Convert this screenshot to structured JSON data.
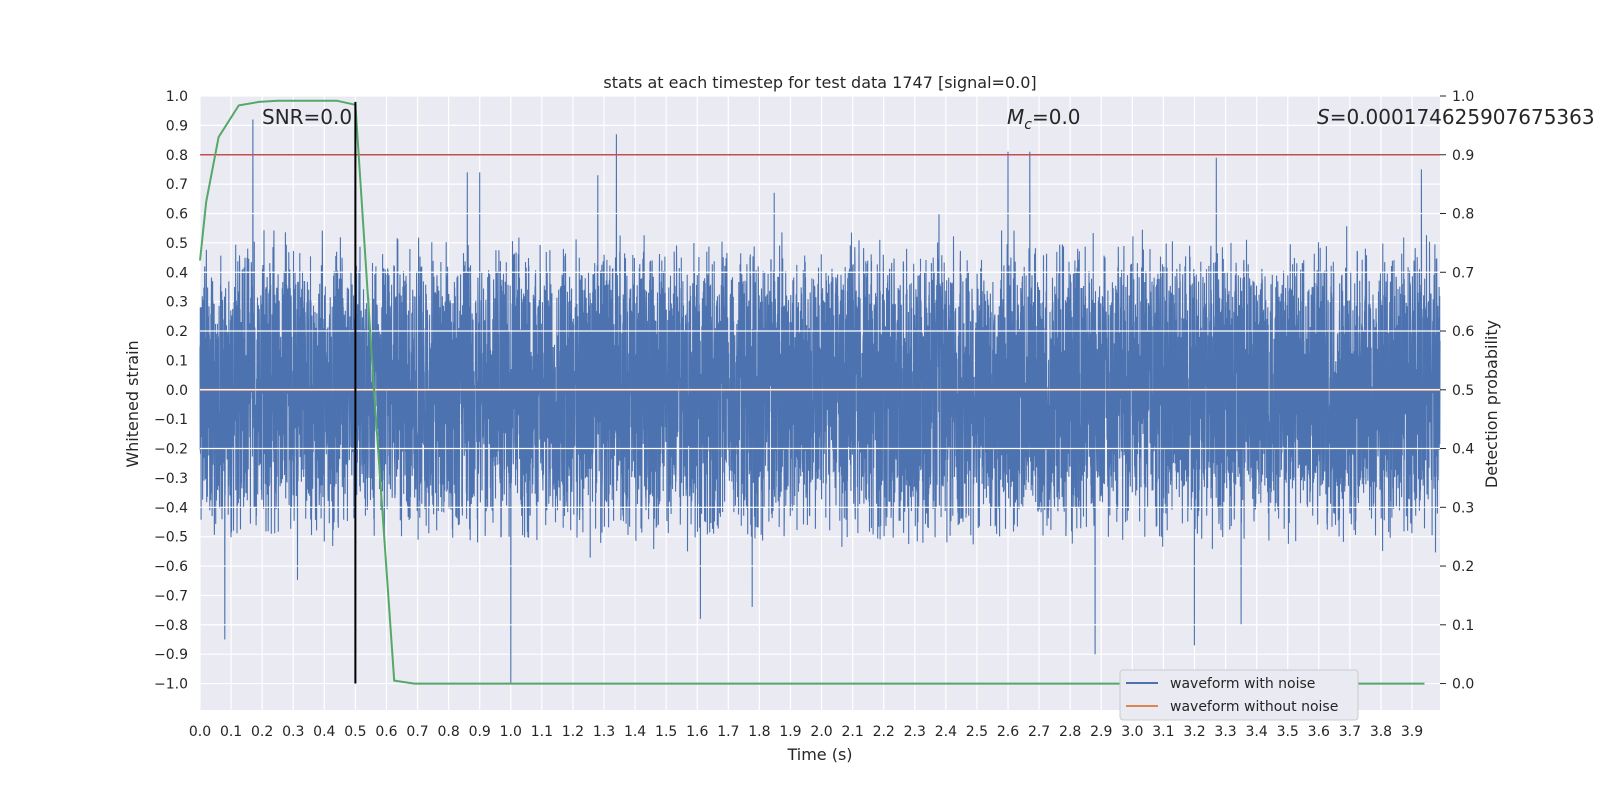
{
  "chart_data": {
    "type": "line",
    "title": "stats at each timestep for test data 1747 [signal=0.0]",
    "xlabel": "Time (s)",
    "ylabel": "Whitened strain",
    "y2label": "Detection probability",
    "xlim": [
      0.0,
      3.99
    ],
    "ylim": [
      -1.09,
      1.0
    ],
    "y2lim": [
      -0.045,
      1.0
    ],
    "xticks": [
      "0.0",
      "0.1",
      "0.2",
      "0.3",
      "0.4",
      "0.5",
      "0.6",
      "0.7",
      "0.8",
      "0.9",
      "1.0",
      "1.1",
      "1.2",
      "1.3",
      "1.4",
      "1.5",
      "1.6",
      "1.7",
      "1.8",
      "1.9",
      "2.0",
      "2.1",
      "2.2",
      "2.3",
      "2.4",
      "2.5",
      "2.6",
      "2.7",
      "2.8",
      "2.9",
      "3.0",
      "3.1",
      "3.2",
      "3.3",
      "3.4",
      "3.5",
      "3.6",
      "3.7",
      "3.8",
      "3.9"
    ],
    "yticks": [
      "1.0",
      "0.9",
      "0.8",
      "0.7",
      "0.6",
      "0.5",
      "0.4",
      "0.3",
      "0.2",
      "0.1",
      "0.0",
      "−0.1",
      "−0.2",
      "−0.3",
      "−0.4",
      "−0.5",
      "−0.6",
      "−0.7",
      "−0.8",
      "−0.9",
      "−1.0"
    ],
    "y2ticks": [
      "1.0",
      "0.9",
      "0.8",
      "0.7",
      "0.6",
      "0.5",
      "0.4",
      "0.3",
      "0.2",
      "0.1",
      "0.0"
    ],
    "annotations": {
      "snr": "SNR=0.0",
      "mc_symbol": "M",
      "mc_sub": "c",
      "mc_value": "=0.0",
      "s_symbol": "S",
      "s_value": "=0.00017462590767536​3"
    },
    "marker_x": 0.5,
    "threshold_prob": 0.9,
    "series": [
      {
        "name": "waveform with noise",
        "color": "#4c72b0",
        "axis": "left",
        "kind": "noisy",
        "n_points": 8000,
        "typical_range": [
          -0.55,
          0.55
        ],
        "peaks": [
          {
            "t": 0.17,
            "v": 0.92
          },
          {
            "t": 0.5,
            "v": 0.55
          },
          {
            "t": 0.5,
            "v": -0.61
          },
          {
            "t": 0.86,
            "v": 0.74
          },
          {
            "t": 0.9,
            "v": 0.74
          },
          {
            "t": 1.0,
            "v": -1.0
          },
          {
            "t": 1.34,
            "v": 0.87
          },
          {
            "t": 1.28,
            "v": 0.73
          },
          {
            "t": 2.6,
            "v": 0.81
          },
          {
            "t": 2.67,
            "v": 0.81
          },
          {
            "t": 2.88,
            "v": -0.9
          },
          {
            "t": 3.2,
            "v": -0.87
          },
          {
            "t": 3.27,
            "v": 0.79
          },
          {
            "t": 3.35,
            "v": -0.8
          },
          {
            "t": 3.93,
            "v": 0.75
          },
          {
            "t": 0.08,
            "v": -0.85
          },
          {
            "t": 1.61,
            "v": -0.78
          }
        ]
      },
      {
        "name": "waveform without noise",
        "color": "#dd8452",
        "axis": "left",
        "kind": "constant",
        "value": 0.0
      },
      {
        "name": "detection probability",
        "color": "#55a868",
        "axis": "right",
        "kind": "line",
        "t": [
          0.0,
          0.02,
          0.06,
          0.125,
          0.19,
          0.25,
          0.31,
          0.375,
          0.44,
          0.5,
          0.56,
          0.625,
          0.69,
          0.75,
          1.0,
          1.5,
          2.0,
          2.5,
          3.0,
          3.5,
          3.94
        ],
        "p": [
          0.72,
          0.82,
          0.93,
          0.984,
          0.99,
          0.992,
          0.992,
          0.992,
          0.992,
          0.985,
          0.5,
          0.005,
          0.0,
          0.0,
          0.0,
          0.0,
          0.0,
          0.0,
          0.0,
          0.0,
          0.0
        ]
      }
    ],
    "legend": {
      "position": "lower-right",
      "entries": [
        "waveform with noise",
        "waveform without noise"
      ]
    },
    "colors": {
      "background": "#eaeaf2",
      "grid": "#ffffff",
      "threshold": "#c44e52",
      "marker": "#000000"
    }
  }
}
